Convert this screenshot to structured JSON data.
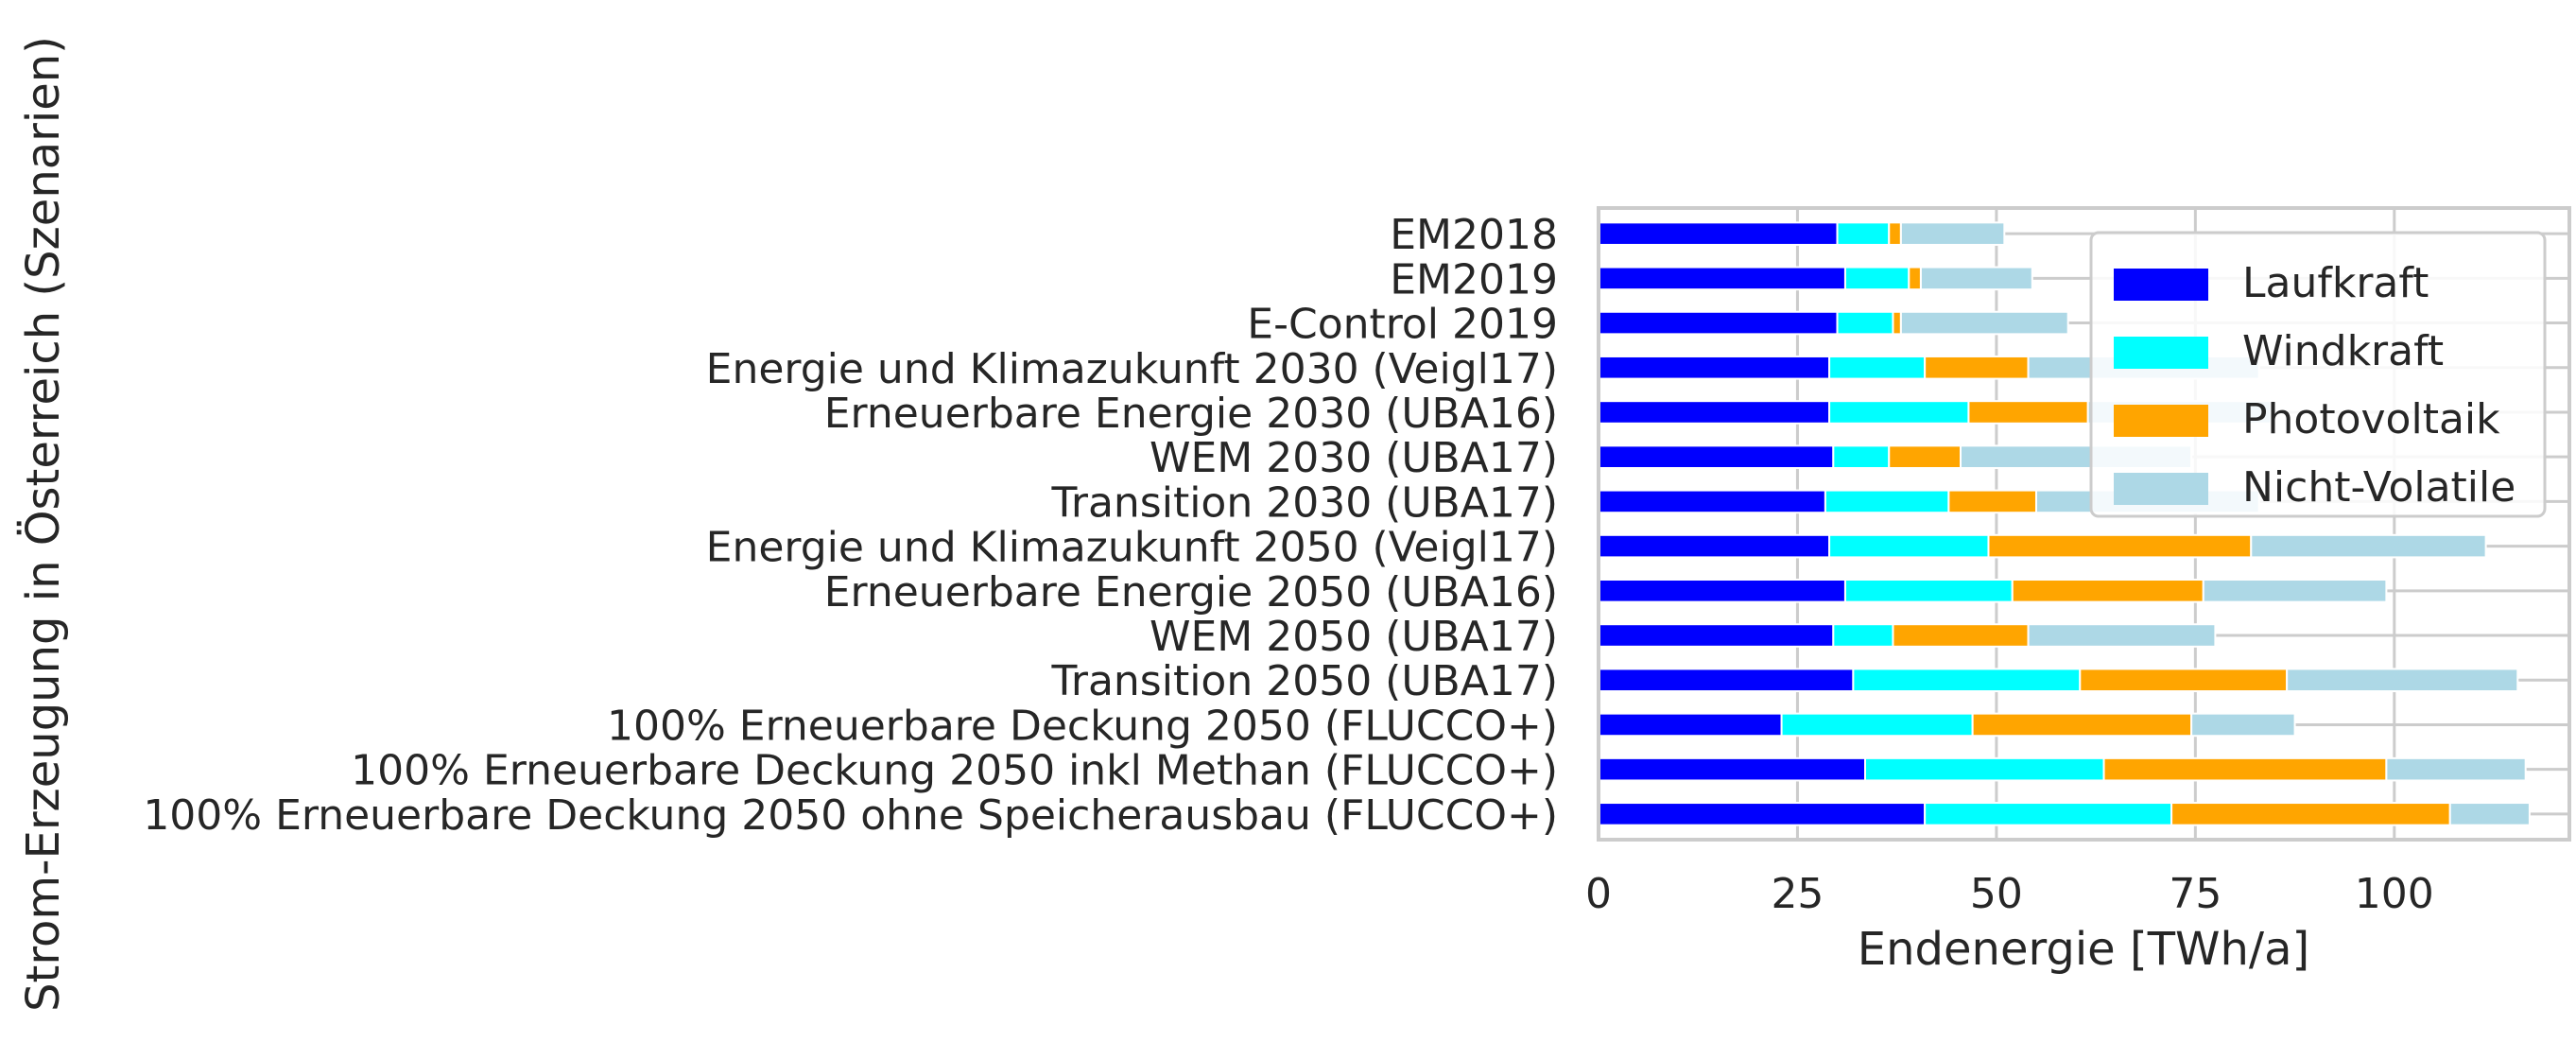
{
  "chart_data": {
    "type": "bar",
    "orientation": "horizontal",
    "stacked": true,
    "title": "",
    "xlabel": "Endenergie [TWh/a]",
    "ylabel": "Strom-Erzeugung in Österreich (Szenarien)",
    "xlim": [
      0,
      122
    ],
    "xticks": [
      0,
      25,
      50,
      75,
      100
    ],
    "grid": true,
    "legend_position": "upper right",
    "categories": [
      "EM2018",
      "EM2019",
      "E-Control 2019",
      "Energie und Klimazukunft 2030 (Veigl17)",
      "Erneuerbare Energie 2030 (UBA16)",
      "WEM 2030 (UBA17)",
      "Transition 2030 (UBA17)",
      "Energie und Klimazukunft 2050 (Veigl17)",
      "Erneuerbare Energie 2050 (UBA16)",
      "WEM 2050 (UBA17)",
      "Transition 2050 (UBA17)",
      "100% Erneuerbare Deckung 2050 (FLUCCO+)",
      "100% Erneuerbare Deckung 2050 inkl Methan (FLUCCO+)",
      "100% Erneuerbare Deckung 2050 ohne Speicherausbau (FLUCCO+)"
    ],
    "series": [
      {
        "name": "Laufkraft",
        "color": "#0000ff",
        "values": [
          30.0,
          31.0,
          30.0,
          29.0,
          29.0,
          29.5,
          28.5,
          29.0,
          31.0,
          29.5,
          32.0,
          23.0,
          33.5,
          41.0
        ]
      },
      {
        "name": "Windkraft",
        "color": "#00ffff",
        "values": [
          6.5,
          8.0,
          7.0,
          12.0,
          17.5,
          7.0,
          15.5,
          20.0,
          21.0,
          7.5,
          28.5,
          24.0,
          30.0,
          31.0
        ]
      },
      {
        "name": "Photovoltaik",
        "color": "#ffa500",
        "values": [
          1.5,
          1.5,
          1.0,
          13.0,
          15.0,
          9.0,
          11.0,
          33.0,
          24.0,
          17.0,
          26.0,
          27.5,
          35.5,
          35.0
        ]
      },
      {
        "name": "Nicht-Volatile",
        "color": "#add8e6",
        "values": [
          13.0,
          14.0,
          21.0,
          29.0,
          23.0,
          29.0,
          28.0,
          29.5,
          23.0,
          23.5,
          29.0,
          13.0,
          17.5,
          10.0
        ]
      }
    ]
  }
}
